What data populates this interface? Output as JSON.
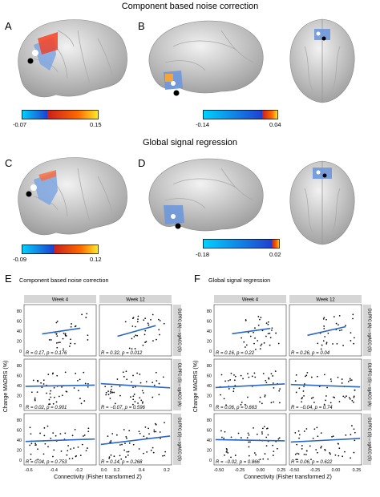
{
  "top": {
    "title": "Component based noise correction",
    "panels": [
      {
        "letter": "A"
      },
      {
        "letter": "B"
      }
    ],
    "colorbars": [
      {
        "min": "-0.07",
        "max": "0.15"
      },
      {
        "min": "-0.14",
        "max": "0.04"
      }
    ]
  },
  "middle": {
    "title": "Global signal regression",
    "panels": [
      {
        "letter": "C"
      },
      {
        "letter": "D"
      }
    ],
    "colorbars": [
      {
        "min": "-0.09",
        "max": "0.12"
      },
      {
        "min": "-0.18",
        "max": "0.02"
      }
    ]
  },
  "bottom": [
    {
      "letter": "E",
      "title": "Component based noise correction",
      "week_labels": [
        "Week 4",
        "Week 12"
      ],
      "row_labels": [
        "DLPFC (A) – sgACC (S)",
        "DLPFC (S) – sgACC (A)",
        "DLPFC (S) – sgACC (S)"
      ],
      "ylabel": "Change MADRS (%)",
      "xlabel": "Connectivity (Fisher transformed Z)",
      "x_ticks": [
        "-0.6",
        "-0.4",
        "-0.2",
        "0.0",
        "0.2",
        "0.4",
        "0.2"
      ],
      "y_ticks": [
        "0",
        "20",
        "40",
        "60",
        "80"
      ],
      "stats": [
        [
          "R = 0.17, p = 0.176",
          "R = 0.32, p = 0.012"
        ],
        [
          "R = 0.02, p = 0.901",
          "R = −0.07, p = 0.596"
        ],
        [
          "R = 0.04, p = 0.753",
          "R = 0.14, p = 0.268"
        ]
      ]
    },
    {
      "letter": "F",
      "title": "Global signal regression",
      "week_labels": [
        "Week 4",
        "Week 12"
      ],
      "row_labels": [
        "DLPFC (A) – sgACC (S)",
        "DLPFC (S) – sgACC (A)",
        "DLPFC (S) – sgACC (S)"
      ],
      "ylabel": "Change MADRS (%)",
      "xlabel": "Connectivity (Fisher transformed Z)",
      "x_ticks": [
        "-0.50",
        "-0.25",
        "0.00",
        "0.25",
        "-0.50",
        "-0.25",
        "0.00",
        "0.25"
      ],
      "y_ticks": [
        "0",
        "20",
        "40",
        "60",
        "80"
      ],
      "stats": [
        [
          "R = 0.16, p = 0.22",
          "R = 0.26, p = 0.04"
        ],
        [
          "R = 0.06, p = 0.663",
          "R = −0.04, p = 0.74"
        ],
        [
          "R = −0.02, p = 0.866",
          "R = 0.06, p = 0.622"
        ]
      ]
    }
  ],
  "colors": {
    "line": "#2a67c8",
    "strip": "#d6d6d6",
    "panel_border": "#555555"
  }
}
